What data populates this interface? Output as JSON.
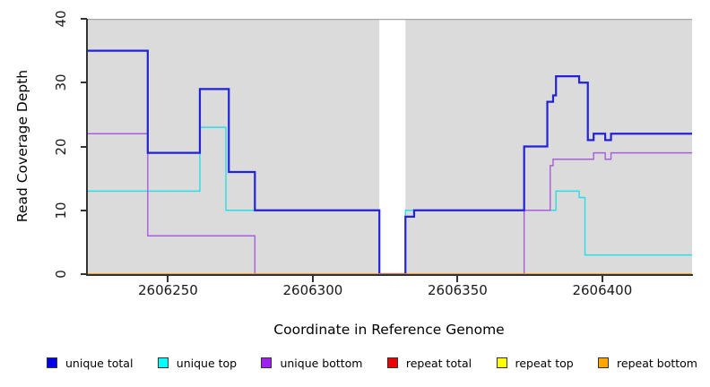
{
  "chart_data": {
    "type": "line",
    "step_style": true,
    "title": "",
    "xlabel": "Coordinate in Reference Genome",
    "ylabel": "Read Coverage Depth",
    "xlim": [
      2606222,
      2606431
    ],
    "ylim": [
      0,
      40
    ],
    "x_ticks": [
      2606250,
      2606300,
      2606350,
      2606400
    ],
    "y_ticks": [
      0,
      10,
      20,
      30,
      40
    ],
    "grid": false,
    "legend_position": "bottom",
    "plot_background": "#dbdbdb",
    "no_data_region": {
      "x_start": 2606323,
      "x_end": 2606332
    },
    "series": [
      {
        "name": "unique total",
        "color": "#2222d8",
        "legend_fill": "#0000ee",
        "width": 2.2,
        "z": 5,
        "steps": [
          [
            2606222,
            35
          ],
          [
            2606243,
            19
          ],
          [
            2606261,
            29
          ],
          [
            2606271,
            16
          ],
          [
            2606280,
            10
          ],
          [
            2606323,
            0
          ],
          [
            2606332,
            9
          ],
          [
            2606335,
            10
          ],
          [
            2606373,
            20
          ],
          [
            2606381,
            27
          ],
          [
            2606383,
            28
          ],
          [
            2606384,
            31
          ],
          [
            2606392,
            30
          ],
          [
            2606395,
            21
          ],
          [
            2606397,
            22
          ],
          [
            2606401,
            21
          ],
          [
            2606403,
            22
          ]
        ]
      },
      {
        "name": "unique top",
        "color": "#2bdde4",
        "legend_fill": "#00ffff",
        "width": 1.4,
        "z": 3,
        "steps": [
          [
            2606222,
            13
          ],
          [
            2606261,
            23
          ],
          [
            2606270,
            10
          ],
          [
            2606323,
            0
          ],
          [
            2606332,
            10
          ],
          [
            2606384,
            13
          ],
          [
            2606392,
            12
          ],
          [
            2606394,
            3
          ]
        ]
      },
      {
        "name": "unique bottom",
        "color": "#a95cdb",
        "legend_fill": "#a020f0",
        "width": 1.4,
        "z": 4,
        "steps": [
          [
            2606222,
            22
          ],
          [
            2606243,
            6
          ],
          [
            2606280,
            0
          ],
          [
            2606373,
            10
          ],
          [
            2606382,
            17
          ],
          [
            2606383,
            18
          ],
          [
            2606397,
            19
          ],
          [
            2606401,
            18
          ],
          [
            2606403,
            19
          ]
        ]
      },
      {
        "name": "repeat total",
        "color": "#dd0000",
        "legend_fill": "#ee0000",
        "width": 1.4,
        "z": 1,
        "steps": [
          [
            2606222,
            0
          ]
        ]
      },
      {
        "name": "repeat top",
        "color": "#ffff00",
        "legend_fill": "#ffff00",
        "width": 1.4,
        "z": 2,
        "steps": [
          [
            2606222,
            0
          ]
        ]
      },
      {
        "name": "repeat bottom",
        "color": "#ff9a1c",
        "legend_fill": "#ffa500",
        "width": 1.4,
        "z": 6,
        "steps": [
          [
            2606222,
            0
          ]
        ]
      }
    ]
  }
}
